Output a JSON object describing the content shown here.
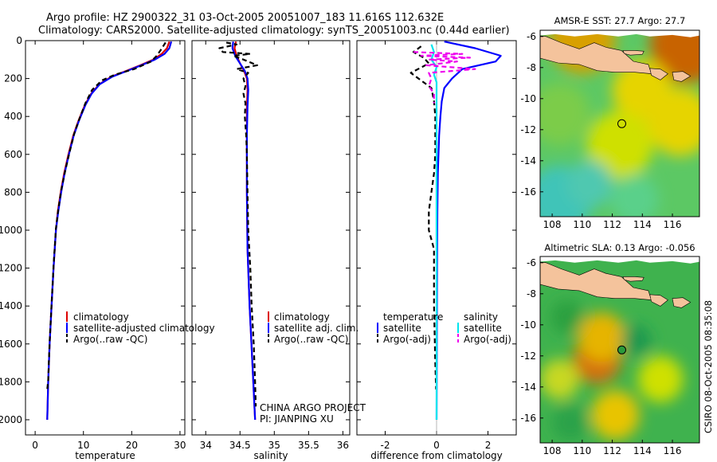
{
  "header": {
    "line1": "Argo profile: HZ 2900322_31 03-Oct-2005 20051007_183 11.616S 112.632E",
    "line2": "Climatology: CARS2000. Satellite-adjusted climatology: synTS_20051003.nc (0.44d earlier)"
  },
  "footer_credit": "CSIRO 08-Oct-2005 08:35:08",
  "colors": {
    "red": "#dd0000",
    "blue": "#0000ff",
    "black": "#000000",
    "cyan": "#00e5ee",
    "magenta": "#ee00ee",
    "land": "#f4c39c"
  },
  "chart_data": [
    {
      "type": "line",
      "id": "temperature",
      "xlabel": "temperature",
      "ylabel": "",
      "xlim": [
        -2,
        31
      ],
      "ylim": [
        2080,
        0
      ],
      "xticks": [
        0,
        10,
        20,
        30
      ],
      "yticks": [
        0,
        200,
        400,
        600,
        800,
        1000,
        1200,
        1400,
        1600,
        1800,
        2000
      ],
      "legend": [
        "climatology",
        "satellite-adjusted climatology",
        "Argo(..raw -QC)"
      ],
      "series": [
        {
          "name": "climatology",
          "color": "red",
          "dash": "",
          "points": [
            [
              27.8,
              5
            ],
            [
              27.3,
              40
            ],
            [
              26.2,
              70
            ],
            [
              24.5,
              100
            ],
            [
              21.8,
              130
            ],
            [
              18.8,
              160
            ],
            [
              15.8,
              190
            ],
            [
              13.3,
              230
            ],
            [
              11.6,
              280
            ],
            [
              10.3,
              340
            ],
            [
              9.0,
              420
            ],
            [
              7.9,
              500
            ],
            [
              6.9,
              600
            ],
            [
              6.0,
              700
            ],
            [
              5.3,
              800
            ],
            [
              4.7,
              900
            ],
            [
              4.3,
              1000
            ],
            [
              3.8,
              1200
            ],
            [
              3.4,
              1400
            ],
            [
              3.0,
              1600
            ],
            [
              2.7,
              1800
            ],
            [
              2.5,
              2000
            ]
          ]
        },
        {
          "name": "satellite-adjusted climatology",
          "color": "blue",
          "dash": "",
          "points": [
            [
              28.2,
              5
            ],
            [
              27.8,
              40
            ],
            [
              26.8,
              70
            ],
            [
              24.8,
              100
            ],
            [
              22.0,
              130
            ],
            [
              19.0,
              160
            ],
            [
              16.0,
              190
            ],
            [
              13.4,
              230
            ],
            [
              11.7,
              280
            ],
            [
              10.4,
              340
            ],
            [
              9.1,
              420
            ],
            [
              8.0,
              500
            ],
            [
              7.0,
              600
            ],
            [
              6.1,
              700
            ],
            [
              5.4,
              800
            ],
            [
              4.8,
              900
            ],
            [
              4.3,
              1000
            ],
            [
              3.8,
              1200
            ],
            [
              3.4,
              1400
            ],
            [
              3.0,
              1600
            ],
            [
              2.7,
              1800
            ],
            [
              2.5,
              2000
            ]
          ]
        },
        {
          "name": "Argo(..raw -QC)",
          "color": "black",
          "dash": "6,4",
          "points": [
            [
              27.0,
              10
            ],
            [
              26.0,
              50
            ],
            [
              25.2,
              80
            ],
            [
              24.0,
              110
            ],
            [
              20.5,
              150
            ],
            [
              16.5,
              180
            ],
            [
              13.8,
              210
            ],
            [
              11.8,
              260
            ],
            [
              10.4,
              330
            ],
            [
              9.2,
              410
            ],
            [
              8.1,
              490
            ],
            [
              7.1,
              590
            ],
            [
              6.2,
              690
            ],
            [
              5.4,
              790
            ],
            [
              4.8,
              890
            ],
            [
              4.3,
              990
            ],
            [
              3.8,
              1190
            ],
            [
              3.4,
              1390
            ],
            [
              3.0,
              1590
            ],
            [
              2.7,
              1790
            ],
            [
              2.5,
              1840
            ]
          ]
        }
      ]
    },
    {
      "type": "line",
      "id": "salinity",
      "xlabel": "salinity",
      "xlim": [
        33.8,
        36.1
      ],
      "ylim": [
        2080,
        0
      ],
      "xticks": [
        34,
        34.5,
        35,
        35.5,
        36
      ],
      "legend": [
        "climatology",
        "satellite adj. clim.",
        "Argo(..raw -QC)"
      ],
      "annotations": [
        "CHINA ARGO PROJECT",
        "PI: JIANPING XU"
      ],
      "series": [
        {
          "name": "climatology",
          "color": "red",
          "dash": "",
          "points": [
            [
              34.44,
              5
            ],
            [
              34.42,
              40
            ],
            [
              34.45,
              80
            ],
            [
              34.5,
              120
            ],
            [
              34.56,
              160
            ],
            [
              34.6,
              200
            ],
            [
              34.61,
              260
            ],
            [
              34.6,
              350
            ],
            [
              34.6,
              500
            ],
            [
              34.6,
              800
            ],
            [
              34.61,
              1100
            ],
            [
              34.64,
              1400
            ],
            [
              34.68,
              1700
            ],
            [
              34.72,
              2000
            ]
          ]
        },
        {
          "name": "satellite adj. clim.",
          "color": "blue",
          "dash": "",
          "points": [
            [
              34.4,
              5
            ],
            [
              34.39,
              40
            ],
            [
              34.43,
              80
            ],
            [
              34.5,
              120
            ],
            [
              34.57,
              160
            ],
            [
              34.61,
              200
            ],
            [
              34.62,
              260
            ],
            [
              34.61,
              350
            ],
            [
              34.6,
              500
            ],
            [
              34.6,
              800
            ],
            [
              34.61,
              1100
            ],
            [
              34.64,
              1400
            ],
            [
              34.68,
              1700
            ],
            [
              34.72,
              2000
            ]
          ]
        },
        {
          "name": "Argo(..raw -QC)",
          "color": "black",
          "dash": "6,4",
          "points": [
            [
              34.3,
              10
            ],
            [
              34.45,
              20
            ],
            [
              34.2,
              40
            ],
            [
              34.25,
              60
            ],
            [
              34.65,
              70
            ],
            [
              34.4,
              80
            ],
            [
              34.55,
              100
            ],
            [
              34.75,
              130
            ],
            [
              34.45,
              150
            ],
            [
              34.62,
              170
            ],
            [
              34.55,
              200
            ],
            [
              34.58,
              240
            ],
            [
              34.55,
              280
            ],
            [
              34.58,
              330
            ],
            [
              34.57,
              400
            ],
            [
              34.59,
              500
            ],
            [
              34.6,
              600
            ],
            [
              34.61,
              800
            ],
            [
              34.62,
              1000
            ],
            [
              34.65,
              1200
            ],
            [
              34.67,
              1400
            ],
            [
              34.7,
              1600
            ],
            [
              34.72,
              1800
            ],
            [
              34.73,
              1930
            ]
          ]
        }
      ]
    },
    {
      "type": "line",
      "id": "difference",
      "xlabel": "difference from climatology",
      "xlim": [
        -3.1,
        3.1
      ],
      "ylim": [
        2080,
        0
      ],
      "xticks": [
        -2,
        0,
        2
      ],
      "legend_titles": [
        "temperature",
        "salinity"
      ],
      "legend": [
        "satellite",
        "Argo(-adj)",
        "satellite",
        "Argo(-adj)"
      ],
      "series": [
        {
          "name": "temperature satellite",
          "color": "blue",
          "dash": "",
          "points": [
            [
              0.3,
              5
            ],
            [
              1.5,
              40
            ],
            [
              2.5,
              80
            ],
            [
              2.3,
              110
            ],
            [
              1.0,
              150
            ],
            [
              0.6,
              200
            ],
            [
              0.3,
              250
            ],
            [
              0.2,
              320
            ],
            [
              0.15,
              400
            ],
            [
              0.1,
              500
            ],
            [
              0.05,
              700
            ],
            [
              0.03,
              900
            ],
            [
              0.02,
              1200
            ],
            [
              0.01,
              1600
            ],
            [
              0.0,
              2000
            ]
          ]
        },
        {
          "name": "temperature Argo(-adj)",
          "color": "black",
          "dash": "6,4",
          "points": [
            [
              -0.6,
              30
            ],
            [
              -0.9,
              60
            ],
            [
              -0.5,
              90
            ],
            [
              -0.3,
              120
            ],
            [
              -1.0,
              170
            ],
            [
              -0.6,
              210
            ],
            [
              -0.2,
              250
            ],
            [
              -0.1,
              320
            ],
            [
              -0.05,
              400
            ],
            [
              -0.05,
              500
            ],
            [
              -0.05,
              600
            ],
            [
              -0.1,
              700
            ],
            [
              -0.2,
              800
            ],
            [
              -0.3,
              900
            ],
            [
              -0.3,
              1000
            ],
            [
              -0.1,
              1100
            ],
            [
              -0.1,
              1400
            ],
            [
              -0.05,
              1700
            ],
            [
              -0.02,
              1840
            ]
          ]
        },
        {
          "name": "salinity satellite",
          "color": "cyan",
          "dash": "",
          "points": [
            [
              -0.2,
              20
            ],
            [
              -0.1,
              60
            ],
            [
              -0.2,
              100
            ],
            [
              0.0,
              140
            ],
            [
              -0.1,
              180
            ],
            [
              0.0,
              220
            ],
            [
              0.0,
              300
            ],
            [
              0.0,
              500
            ],
            [
              0.0,
              800
            ],
            [
              0.0,
              1100
            ],
            [
              0.0,
              1400
            ],
            [
              0.0,
              1700
            ],
            [
              0.0,
              2000
            ]
          ]
        },
        {
          "name": "salinity Argo(-adj)",
          "color": "magenta",
          "dash": "6,4",
          "points": [
            [
              -0.9,
              60
            ],
            [
              1.0,
              70
            ],
            [
              -0.6,
              80
            ],
            [
              1.3,
              90
            ],
            [
              -0.3,
              100
            ],
            [
              0.8,
              110
            ],
            [
              -0.4,
              130
            ],
            [
              1.5,
              150
            ],
            [
              -0.3,
              170
            ],
            [
              -0.2,
              200
            ],
            [
              -0.3,
              240
            ],
            [
              -0.1,
              280
            ],
            [
              -0.1,
              330
            ]
          ]
        }
      ]
    },
    {
      "type": "heatmap",
      "id": "sst-map",
      "title": "AMSR-E SST: 27.7 Argo: 27.7",
      "xticks": [
        108,
        110,
        112,
        114,
        116
      ],
      "yticks": [
        -6,
        -8,
        -10,
        -12,
        -14,
        -16
      ],
      "xlim": [
        107.2,
        117.8
      ],
      "ylim": [
        -17.6,
        -5.6
      ],
      "marker": [
        112.632,
        -11.616
      ],
      "blobs": [
        {
          "lon": 117,
          "lat": -6.5,
          "color": "#c86400",
          "r": 2.5
        },
        {
          "lon": 110,
          "lat": -6.2,
          "color": "#d8a000",
          "r": 2.2
        },
        {
          "lon": 114,
          "lat": -9.5,
          "color": "#e6d400",
          "r": 2.0
        },
        {
          "lon": 116.5,
          "lat": -11.5,
          "color": "#e6d400",
          "r": 2.2
        },
        {
          "lon": 112.5,
          "lat": -13.0,
          "color": "#cfe000",
          "r": 2.2
        },
        {
          "lon": 108.5,
          "lat": -11.0,
          "color": "#7ccc4a",
          "r": 2.0
        },
        {
          "lon": 108.5,
          "lat": -16.5,
          "color": "#40c4b8",
          "r": 2.2
        },
        {
          "lon": 110.5,
          "lat": -15.5,
          "color": "#50c8b0",
          "r": 1.5
        },
        {
          "lon": 113.5,
          "lat": -16.5,
          "color": "#5ad08a",
          "r": 1.6
        }
      ]
    },
    {
      "type": "heatmap",
      "id": "sla-map",
      "title": "Altimetric SLA: 0.13 Argo: -0.056",
      "xticks": [
        108,
        110,
        112,
        114,
        116
      ],
      "yticks": [
        -6,
        -8,
        -10,
        -12,
        -14,
        -16
      ],
      "xlim": [
        107.2,
        117.8
      ],
      "ylim": [
        -17.6,
        -5.6
      ],
      "marker": [
        112.632,
        -11.616
      ],
      "blobs": [
        {
          "lon": 111.0,
          "lat": -12.2,
          "color": "#d47010",
          "r": 1.6
        },
        {
          "lon": 111.3,
          "lat": -10.8,
          "color": "#e6b400",
          "r": 1.6
        },
        {
          "lon": 112.2,
          "lat": -15.8,
          "color": "#e8c400",
          "r": 1.6
        },
        {
          "lon": 108.5,
          "lat": -13.5,
          "color": "#c8d820",
          "r": 1.3
        },
        {
          "lon": 115.2,
          "lat": -13.5,
          "color": "#cfe000",
          "r": 1.5
        },
        {
          "lon": 109.2,
          "lat": -16.3,
          "color": "#2aa24a",
          "r": 1.2
        },
        {
          "lon": 113.6,
          "lat": -11.0,
          "color": "#1e9850",
          "r": 1.0
        },
        {
          "lon": 109.0,
          "lat": -9.5,
          "color": "#2aa040",
          "r": 1.1
        }
      ]
    }
  ]
}
